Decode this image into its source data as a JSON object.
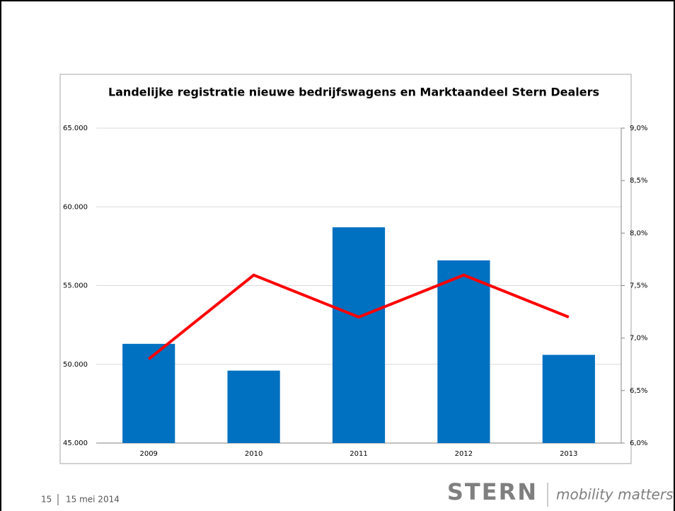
{
  "chart_data": {
    "type": "bar",
    "title": "Landelijke registratie nieuwe bedrijfswagens en Marktaandeel Stern Dealers",
    "categories": [
      "2009",
      "2010",
      "2011",
      "2012",
      "2013"
    ],
    "series": [
      {
        "type": "bar",
        "color": "#0070c0",
        "values": [
          51300,
          49600,
          58700,
          56600,
          50600
        ]
      },
      {
        "type": "line",
        "color": "#ff0000",
        "axis": "y2",
        "values": [
          6.8,
          7.6,
          7.2,
          7.6,
          7.2
        ]
      }
    ],
    "ylim": [
      45000,
      65000
    ],
    "yticks": [
      {
        "value": 45000,
        "label": "45.000"
      },
      {
        "value": 50000,
        "label": "50.000"
      },
      {
        "value": 55000,
        "label": "55.000"
      },
      {
        "value": 60000,
        "label": "60.000"
      },
      {
        "value": 65000,
        "label": "65.000"
      }
    ],
    "y2lim": [
      6.0,
      9.0
    ],
    "y2ticks": [
      {
        "value": 6.0,
        "label": "6,0%"
      },
      {
        "value": 6.5,
        "label": "6,5%"
      },
      {
        "value": 7.0,
        "label": "7,0%"
      },
      {
        "value": 7.5,
        "label": "7,5%"
      },
      {
        "value": 8.0,
        "label": "8,0%"
      },
      {
        "value": 8.5,
        "label": "8,5%"
      },
      {
        "value": 9.0,
        "label": "9,0%"
      }
    ],
    "grid": true
  },
  "footer": {
    "page": "15",
    "date": "15 mei 2014"
  },
  "logo": {
    "brand": "STERN",
    "tagline": "mobility matters"
  }
}
